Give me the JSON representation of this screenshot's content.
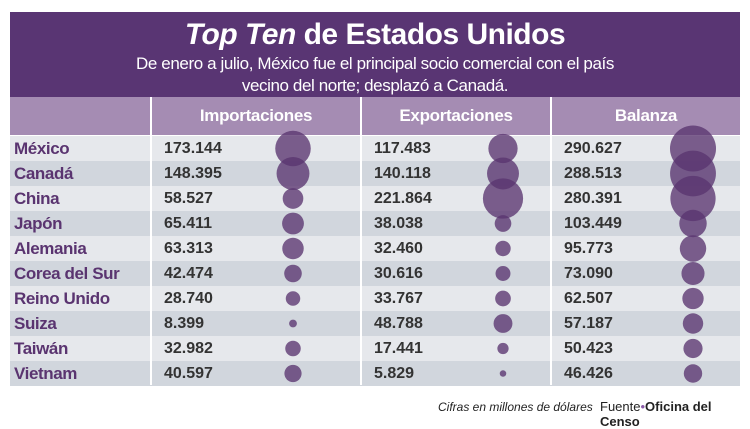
{
  "header": {
    "title_italic": "Top Ten",
    "title_rest": " de Estados Unidos",
    "subtitle_line1": "De enero a julio, México fue el principal socio comercial con el país",
    "subtitle_line2": "vecino del norte; desplazó a Canadá."
  },
  "chart_data": {
    "type": "table",
    "columns": [
      "Importaciones",
      "Exportaciones",
      "Balanza"
    ],
    "rows": [
      {
        "country": "México",
        "values": [
          "173.144",
          "117.483",
          "290.627"
        ]
      },
      {
        "country": "Canadá",
        "values": [
          "148.395",
          "140.118",
          "288.513"
        ]
      },
      {
        "country": "China",
        "values": [
          "58.527",
          "221.864",
          "280.391"
        ]
      },
      {
        "country": "Japón",
        "values": [
          "65.411",
          "38.038",
          "103.449"
        ]
      },
      {
        "country": "Alemania",
        "values": [
          "63.313",
          "32.460",
          "95.773"
        ]
      },
      {
        "country": "Corea del Sur",
        "values": [
          "42.474",
          "30.616",
          "73.090"
        ]
      },
      {
        "country": "Reino Unido",
        "values": [
          "28.740",
          "33.767",
          "62.507"
        ]
      },
      {
        "country": "Suiza",
        "values": [
          "8.399",
          "48.788",
          "57.187"
        ]
      },
      {
        "country": "Taiwán",
        "values": [
          "32.982",
          "17.441",
          "50.423"
        ]
      },
      {
        "country": "Vietnam",
        "values": [
          "40.597",
          "5.829",
          "46.426"
        ]
      }
    ],
    "bubble_encoding": "circle area proportional to value",
    "colors": {
      "bubble": "#5a3470",
      "header": "#593573",
      "column_header": "#a58cb3",
      "row_light": "#e6e8ec",
      "row_dark": "#d1d6dd",
      "country": "#5a3470"
    }
  },
  "footer": {
    "note": "Cifras en millones de dólares",
    "source_label": "Fuente",
    "source_sep": "•",
    "source_name": "Oficina del Censo"
  }
}
